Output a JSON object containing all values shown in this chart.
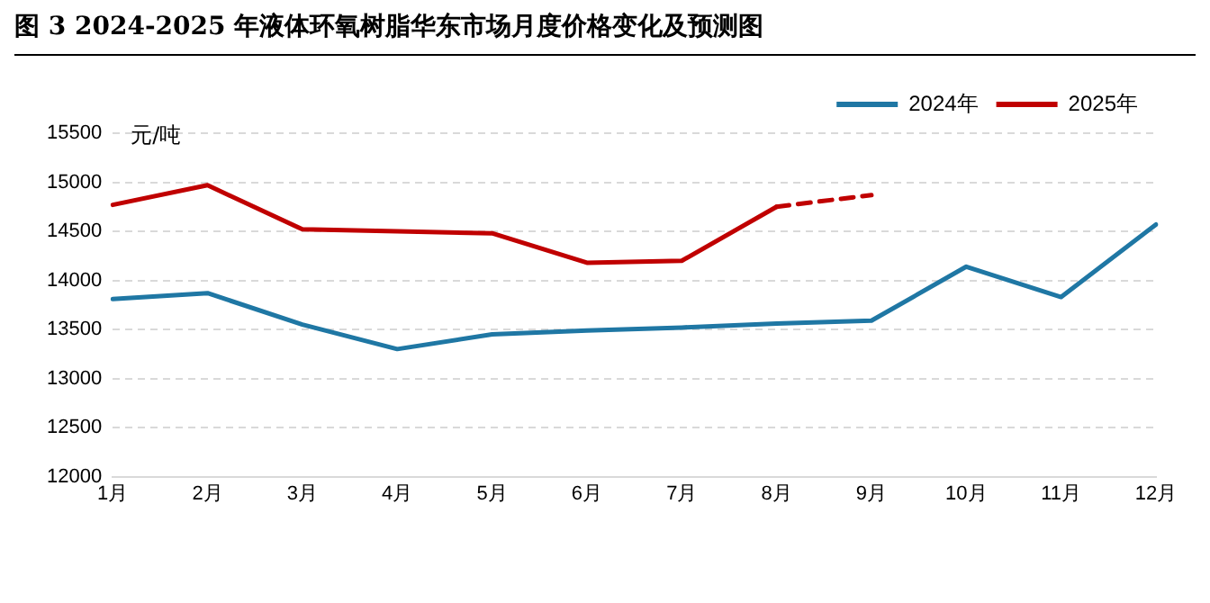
{
  "chart_data": {
    "type": "line",
    "title": "图 3 2024-2025 年液体环氧树脂华东市场月度价格变化及预测图",
    "ylabel": "元/吨",
    "categories": [
      "1月",
      "2月",
      "3月",
      "4月",
      "5月",
      "6月",
      "7月",
      "8月",
      "9月",
      "10月",
      "11月",
      "12月"
    ],
    "series": [
      {
        "name": "2024年",
        "color": "#1f77a4",
        "values": [
          13810,
          13870,
          13550,
          13300,
          13450,
          13490,
          13520,
          13560,
          13590,
          14140,
          13830,
          14570
        ]
      },
      {
        "name": "2025年",
        "color": "#c00000",
        "values": [
          14770,
          14970,
          14520,
          14500,
          14480,
          14180,
          14200,
          14750,
          null,
          null,
          null,
          null
        ]
      },
      {
        "color": "#c00000",
        "line_style": "dashed",
        "values": [
          null,
          null,
          null,
          null,
          null,
          null,
          null,
          14750,
          14870,
          null,
          null,
          null
        ]
      }
    ],
    "ylim": [
      12000,
      15500
    ],
    "yticks": [
      12000,
      12500,
      13000,
      13500,
      14000,
      14500,
      15000,
      15500
    ],
    "grid": "y",
    "legend": "top right",
    "marker": "none",
    "line_style": "solid"
  }
}
